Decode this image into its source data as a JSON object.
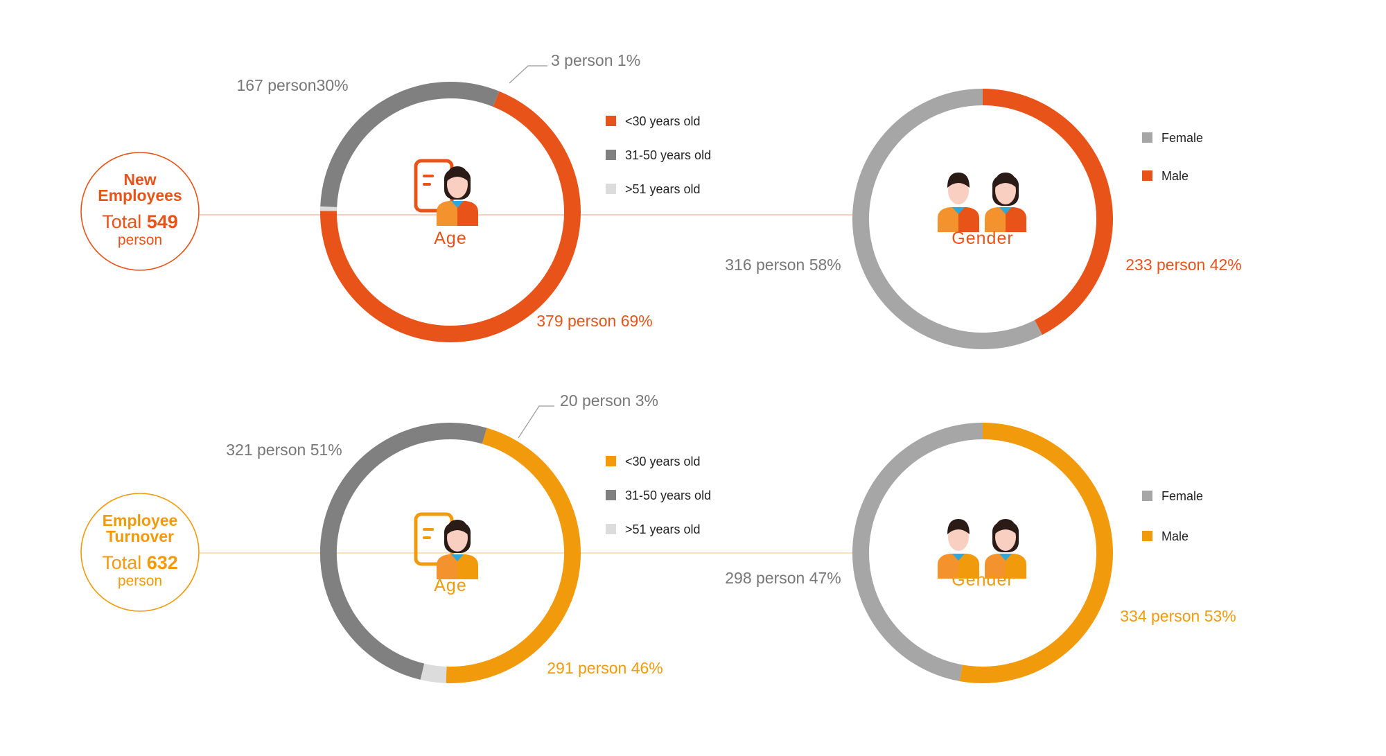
{
  "colors": {
    "new_accent": "#E8531A",
    "turnover_accent": "#F09A0C",
    "gray_dark": "#808080",
    "gray_mid": "#A6A6A6",
    "gray_light": "#DCDCDC",
    "label_gray": "#777777",
    "skin": "#F8CFC0",
    "hair": "#2B1B17",
    "collar": "#2FA7D8"
  },
  "sections": [
    {
      "id": "new",
      "title_line1": "New",
      "title_line2": "Employees",
      "total_prefix": "Total",
      "total_value": "549",
      "total_unit": "person"
    },
    {
      "id": "turnover",
      "title_line1": "Employee",
      "title_line2": "Turnover",
      "total_prefix": "Total",
      "total_value": "632",
      "total_unit": "person"
    }
  ],
  "chart_data": [
    {
      "type": "pie",
      "variant": "donut",
      "title": "Age",
      "section": "New Employees",
      "series": [
        {
          "name": "<30 years old",
          "value": 379,
          "percent": 69,
          "label": "379 person 69%",
          "color": "#E8531A"
        },
        {
          "name": "31-50 years old",
          "value": 167,
          "percent": 30,
          "label": "167 person30%",
          "color": "#808080"
        },
        {
          "name": ">51 years old",
          "value": 3,
          "percent": 1,
          "label": "3 person 1%",
          "color": "#DCDCDC"
        }
      ],
      "legend": [
        {
          "label": "<30 years old",
          "color": "#E8531A"
        },
        {
          "label": "31-50 years old",
          "color": "#808080"
        },
        {
          "label": ">51 years old",
          "color": "#DCDCDC"
        }
      ],
      "legend_position": "right"
    },
    {
      "type": "pie",
      "variant": "donut",
      "title": "Gender",
      "section": "New Employees",
      "series": [
        {
          "name": "Male",
          "value": 233,
          "percent": 42,
          "label": "233 person 42%",
          "color": "#E8531A"
        },
        {
          "name": "Female",
          "value": 316,
          "percent": 58,
          "label": "316 person 58%",
          "color": "#A6A6A6"
        }
      ],
      "legend": [
        {
          "label": "Female",
          "color": "#A6A6A6"
        },
        {
          "label": "Male",
          "color": "#E8531A"
        }
      ],
      "legend_position": "right"
    },
    {
      "type": "pie",
      "variant": "donut",
      "title": "Age",
      "section": "Employee Turnover",
      "series": [
        {
          "name": "<30 years old",
          "value": 291,
          "percent": 46,
          "label": "291 person 46%",
          "color": "#F09A0C"
        },
        {
          "name": "31-50 years old",
          "value": 321,
          "percent": 51,
          "label": "321 person 51%",
          "color": "#808080"
        },
        {
          "name": ">51 years old",
          "value": 20,
          "percent": 3,
          "label": "20 person 3%",
          "color": "#DCDCDC"
        }
      ],
      "legend": [
        {
          "label": "<30 years old",
          "color": "#F09A0C"
        },
        {
          "label": "31-50 years old",
          "color": "#808080"
        },
        {
          "label": ">51 years old",
          "color": "#DCDCDC"
        }
      ],
      "legend_position": "right"
    },
    {
      "type": "pie",
      "variant": "donut",
      "title": "Gender",
      "section": "Employee Turnover",
      "series": [
        {
          "name": "Male",
          "value": 334,
          "percent": 53,
          "label": "334 person 53%",
          "color": "#F09A0C"
        },
        {
          "name": "Female",
          "value": 298,
          "percent": 47,
          "label": "298 person 47%",
          "color": "#A6A6A6"
        }
      ],
      "legend": [
        {
          "label": "Female",
          "color": "#A6A6A6"
        },
        {
          "label": "Male",
          "color": "#F09A0C"
        }
      ],
      "legend_position": "right"
    }
  ]
}
